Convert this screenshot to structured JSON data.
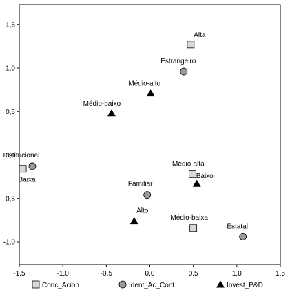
{
  "chart_data": {
    "type": "scatter",
    "title": "",
    "xlabel": "",
    "ylabel": "",
    "xlim": [
      -1.5,
      1.5
    ],
    "ylim": [
      -1.25,
      1.75
    ],
    "x_ticks": [
      -1.5,
      -1.0,
      -0.5,
      0.0,
      0.5,
      1.0,
      1.5
    ],
    "x_tick_labels": [
      "-1,5",
      "-1,0",
      "-0,5",
      "0,0",
      "0,5",
      "1,0",
      "1,5"
    ],
    "y_ticks": [
      -1.0,
      -0.5,
      0.0,
      0.5,
      1.0,
      1.5
    ],
    "y_tick_labels": [
      "-1,0",
      "-0,5",
      "0,0",
      "0,5",
      "1,0",
      "1,5"
    ],
    "grid": false,
    "legend_position": "bottom",
    "series": [
      {
        "name": "Conc_Acion",
        "marker": "square",
        "color": "#d9d9d9",
        "points": [
          {
            "label": "Alta",
            "x": 0.47,
            "y": 1.27
          },
          {
            "label": "Médio-alta",
            "x": 0.49,
            "y": -0.22
          },
          {
            "label": "Médio-baixa",
            "x": 0.5,
            "y": -0.84
          },
          {
            "label": "Baixa",
            "x": -1.46,
            "y": -0.16
          }
        ]
      },
      {
        "name": "Ident_Ac_Cont",
        "marker": "circle",
        "color": "#9a9a9a",
        "points": [
          {
            "label": "Estrangeiro",
            "x": 0.39,
            "y": 0.96
          },
          {
            "label": "Familiar",
            "x": -0.03,
            "y": -0.46
          },
          {
            "label": "Estatal",
            "x": 1.07,
            "y": -0.94
          },
          {
            "label": "Institucional",
            "x": -1.35,
            "y": -0.13
          }
        ]
      },
      {
        "name": "Invest_P&D",
        "marker": "triangle",
        "color": "#000000",
        "points": [
          {
            "label": "Médio-alto",
            "x": 0.01,
            "y": 0.71
          },
          {
            "label": "Médio-baixo",
            "x": -0.44,
            "y": 0.48
          },
          {
            "label": "Baixo",
            "x": 0.54,
            "y": -0.33
          },
          {
            "label": "Alto",
            "x": -0.18,
            "y": -0.76
          }
        ]
      }
    ]
  }
}
